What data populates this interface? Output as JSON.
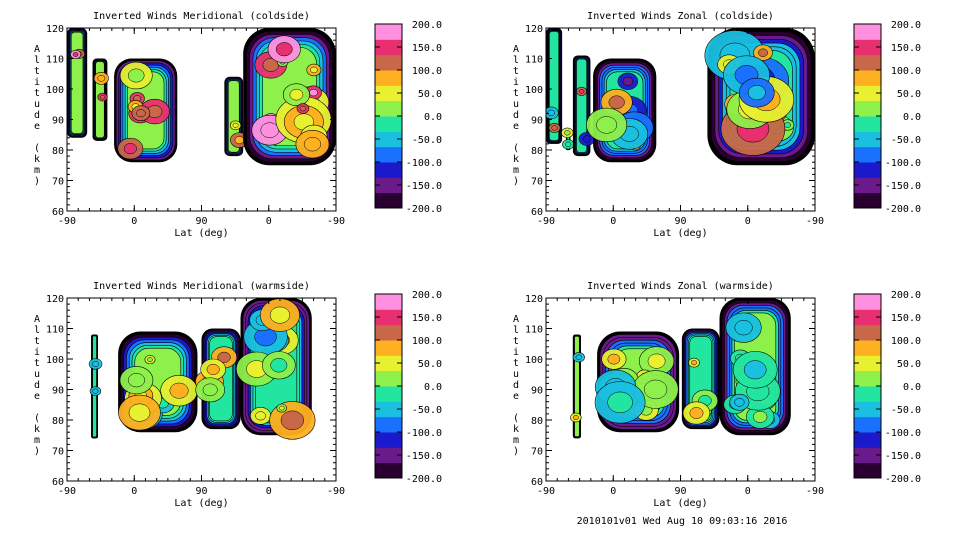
{
  "chart_data": [
    {
      "type": "heatmap",
      "title": "Inverted Winds Meridional (coldside)",
      "xlabel": "Lat (deg)",
      "ylabel": "Altitude (km)",
      "x_ticks": [
        "-90",
        "0",
        "90",
        "0",
        "-90"
      ],
      "y_ticks": [
        "60",
        "70",
        "80",
        "90",
        "100",
        "110",
        "120"
      ],
      "ylim": [
        60,
        120
      ],
      "colorbar": {
        "range": [
          -200,
          200
        ],
        "ticks": [
          "200.0",
          "150.0",
          "100.0",
          "50.0",
          "0.0",
          "-50.0",
          "-100.0",
          "-150.0",
          "-200.0"
        ]
      }
    },
    {
      "type": "heatmap",
      "title": "Inverted Winds Zonal (coldside)",
      "xlabel": "Lat (deg)",
      "ylabel": "Altitude (km)",
      "x_ticks": [
        "-90",
        "0",
        "90",
        "0",
        "-90"
      ],
      "y_ticks": [
        "60",
        "70",
        "80",
        "90",
        "100",
        "110",
        "120"
      ],
      "ylim": [
        60,
        120
      ],
      "colorbar": {
        "range": [
          -200,
          200
        ],
        "ticks": [
          "200.0",
          "150.0",
          "100.0",
          "50.0",
          "0.0",
          "-50.0",
          "-100.0",
          "-150.0",
          "-200.0"
        ]
      }
    },
    {
      "type": "heatmap",
      "title": "Inverted Winds Meridional (warmside)",
      "xlabel": "Lat (deg)",
      "ylabel": "Altitude (km)",
      "x_ticks": [
        "-90",
        "0",
        "90",
        "0",
        "-90"
      ],
      "y_ticks": [
        "60",
        "70",
        "80",
        "90",
        "100",
        "110",
        "120"
      ],
      "ylim": [
        60,
        120
      ],
      "colorbar": {
        "range": [
          -200,
          200
        ],
        "ticks": [
          "200.0",
          "150.0",
          "100.0",
          "50.0",
          "0.0",
          "-50.0",
          "-100.0",
          "-150.0",
          "-200.0"
        ]
      }
    },
    {
      "type": "heatmap",
      "title": "Inverted Winds Zonal (warmside)",
      "xlabel": "Lat (deg)",
      "ylabel": "Altitude (km)",
      "x_ticks": [
        "-90",
        "0",
        "90",
        "0",
        "-90"
      ],
      "y_ticks": [
        "60",
        "70",
        "80",
        "90",
        "100",
        "110",
        "120"
      ],
      "ylim": [
        60,
        120
      ],
      "colorbar": {
        "range": [
          -200,
          200
        ],
        "ticks": [
          "200.0",
          "150.0",
          "100.0",
          "50.0",
          "0.0",
          "-50.0",
          "-100.0",
          "-150.0",
          "-200.0"
        ]
      }
    }
  ],
  "footer": "2010101v01 Wed Aug 10 09:03:16 2016",
  "colormap": [
    "#2a0030",
    "#6a1a8a",
    "#1a1acc",
    "#1a70ff",
    "#19c0e0",
    "#22e6a0",
    "#8ef04a",
    "#e8f030",
    "#ffb020",
    "#c86848",
    "#e83070",
    "#ff90e0"
  ]
}
